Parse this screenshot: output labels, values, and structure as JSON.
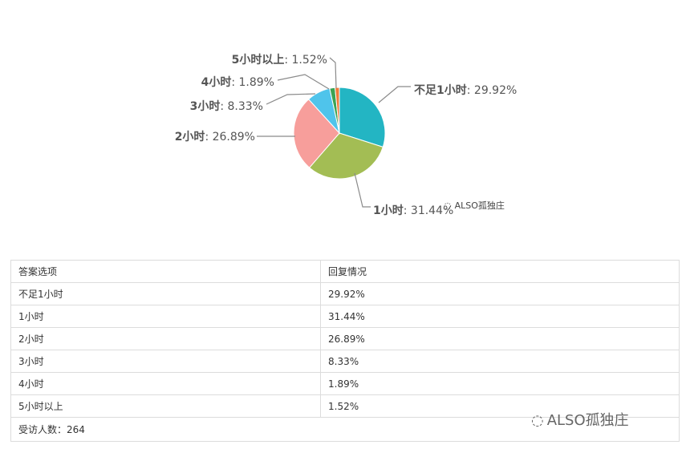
{
  "table": {
    "header": [
      "答案选项",
      "回复情况"
    ],
    "rows": [
      [
        "不足1小时",
        "29.92%"
      ],
      [
        "1小时",
        "31.44%"
      ],
      [
        "2小时",
        "26.89%"
      ],
      [
        "3小时",
        "8.33%"
      ],
      [
        "4小时",
        "1.89%"
      ],
      [
        "5小时以上",
        "1.52%"
      ]
    ],
    "footer": "受访人数：264"
  },
  "watermark": {
    "text": "ALSO孤独庄",
    "icon": "wechat-icon"
  },
  "chart_data": {
    "type": "pie",
    "title": "",
    "start_angle_deg": 0,
    "direction": "clockwise",
    "slices": [
      {
        "label": "不足1小时",
        "value": 29.92,
        "display": "29.92%",
        "color": "#23b5c3"
      },
      {
        "label": "1小时",
        "value": 31.44,
        "display": "31.44%",
        "color": "#a3bd54"
      },
      {
        "label": "2小时",
        "value": 26.89,
        "display": "26.89%",
        "color": "#f79e9b"
      },
      {
        "label": "3小时",
        "value": 8.33,
        "display": "8.33%",
        "color": "#4fc4eb"
      },
      {
        "label": "4小时",
        "value": 1.89,
        "display": "1.89%",
        "color": "#3aa354"
      },
      {
        "label": "5小时以上",
        "value": 1.52,
        "display": "1.52%",
        "color": "#f07a3a"
      }
    ]
  }
}
